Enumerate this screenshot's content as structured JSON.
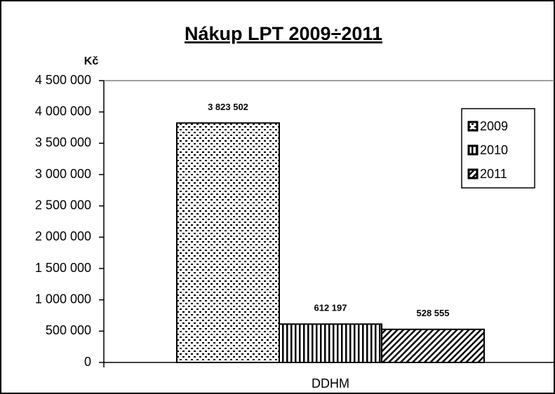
{
  "chart_data": {
    "type": "bar",
    "title": "Nákup LPT 2009÷2011",
    "y_label": "Kč",
    "categories": [
      "DDHM"
    ],
    "series": [
      {
        "name": "2009",
        "color": "#000000",
        "pattern": "dots",
        "values": [
          3823502
        ],
        "value_labels": [
          "3 823 502"
        ]
      },
      {
        "name": "2010",
        "color": "#000000",
        "pattern": "vertical",
        "values": [
          612197
        ],
        "value_labels": [
          "612 197"
        ]
      },
      {
        "name": "2011",
        "color": "#000000",
        "pattern": "diagonal",
        "values": [
          528555
        ],
        "value_labels": [
          "528 555"
        ]
      }
    ],
    "ylim": [
      0,
      4500000
    ],
    "yticks": [
      0,
      {
        "value": 500000,
        "label": "500 000"
      },
      {
        "value": 1000000,
        "label": "1 000 000"
      },
      {
        "value": 1500000,
        "label": "1 500 000"
      },
      {
        "value": 2000000,
        "label": "2 000 000"
      },
      {
        "value": 2500000,
        "label": "2 500 000"
      },
      {
        "value": 3000000,
        "label": "3 000 000"
      },
      {
        "value": 3500000,
        "label": "3 500 000"
      },
      {
        "value": 4000000,
        "label": "4 000 000"
      },
      {
        "value": 4500000,
        "label": "4 500 000"
      }
    ],
    "legend": "right",
    "grid": false
  }
}
